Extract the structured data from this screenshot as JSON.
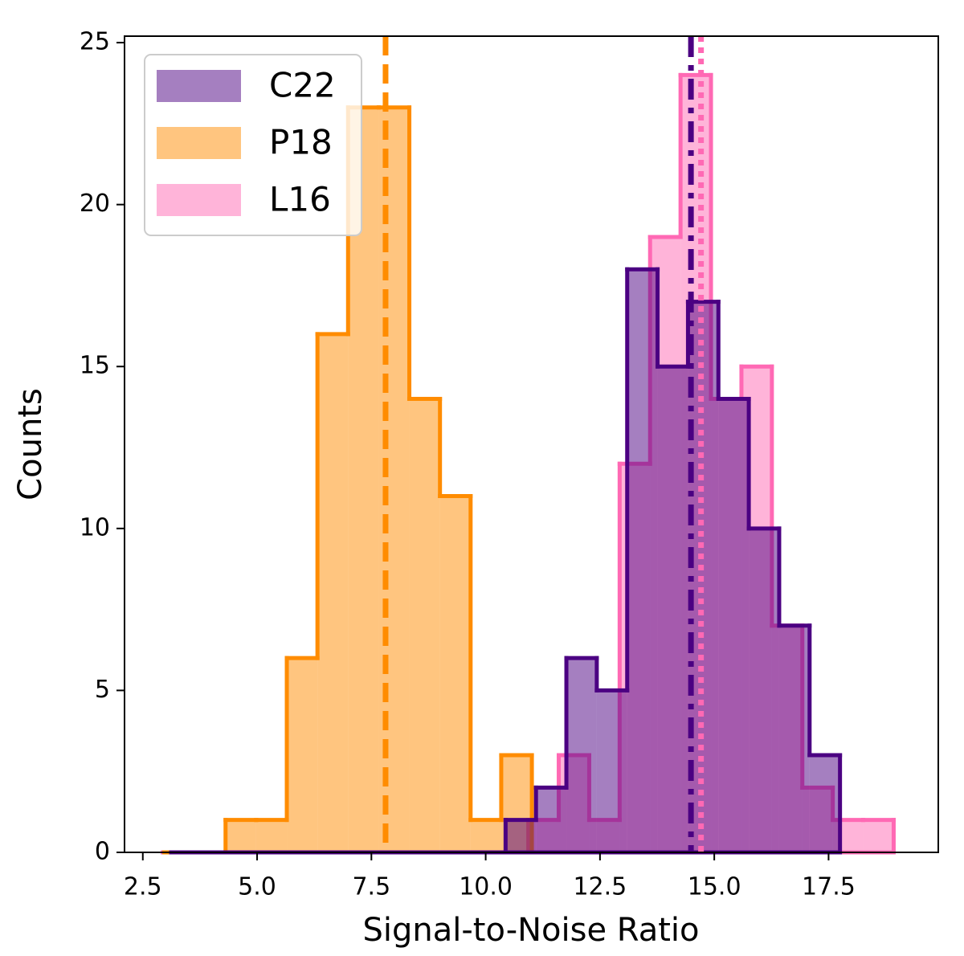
{
  "chart_data": {
    "type": "histogram",
    "xlabel": "Signal-to-Noise Ratio",
    "ylabel": "Counts",
    "xlim": [
      2.1,
      19.9
    ],
    "ylim": [
      0,
      25.2
    ],
    "xticks": [
      2.5,
      {
        "value": 5,
        "label": "5.0"
      },
      7.5,
      {
        "value": 10,
        "label": "10.0"
      },
      12.5,
      {
        "value": 15,
        "label": "15.0"
      },
      17.5
    ],
    "yticks": [
      0,
      5,
      10,
      15,
      20,
      25
    ],
    "legend": "upper left",
    "series": [
      {
        "name": "C22",
        "color": "#4b0082",
        "linestyle": "dashdot",
        "mean": 14.49,
        "bins": [
          3.12,
          3.785,
          4.45,
          5.115,
          5.78,
          6.445,
          7.11,
          7.775,
          8.44,
          9.105,
          9.77,
          10.435,
          11.1,
          11.765,
          12.43,
          13.095,
          13.76,
          14.425,
          15.09,
          15.755,
          16.42,
          17.085,
          17.75
        ],
        "values": [
          0,
          0,
          0,
          0,
          0,
          0,
          0,
          0,
          0,
          0,
          0,
          1,
          2,
          6,
          5,
          18,
          15,
          17,
          14,
          10,
          7,
          3
        ]
      },
      {
        "name": "P18",
        "color": "#ff8c00",
        "linestyle": "dashed",
        "mean": 7.81,
        "bins": [
          2.97,
          3.64,
          4.31,
          4.98,
          5.65,
          6.32,
          6.99,
          7.66,
          8.33,
          9.0,
          9.67,
          10.34,
          11.01
        ],
        "values": [
          0,
          0,
          1,
          1,
          6,
          16,
          23,
          23,
          14,
          11,
          1,
          3
        ]
      },
      {
        "name": "L16",
        "color": "#ff69b4",
        "linestyle": "dotted",
        "mean": 14.71,
        "bins": [
          2.94,
          3.606,
          4.272,
          4.938,
          5.604,
          6.27,
          6.936,
          7.602,
          8.268,
          8.934,
          9.6,
          10.266,
          10.932,
          11.598,
          12.264,
          12.93,
          13.596,
          14.262,
          14.928,
          15.594,
          16.26,
          16.926,
          17.592,
          18.258,
          18.924
        ],
        "values": [
          0,
          0,
          0,
          0,
          0,
          0,
          0,
          0,
          0,
          0,
          0,
          0,
          1,
          3,
          1,
          12,
          19,
          24,
          14,
          15,
          7,
          2,
          1,
          1
        ]
      }
    ]
  }
}
